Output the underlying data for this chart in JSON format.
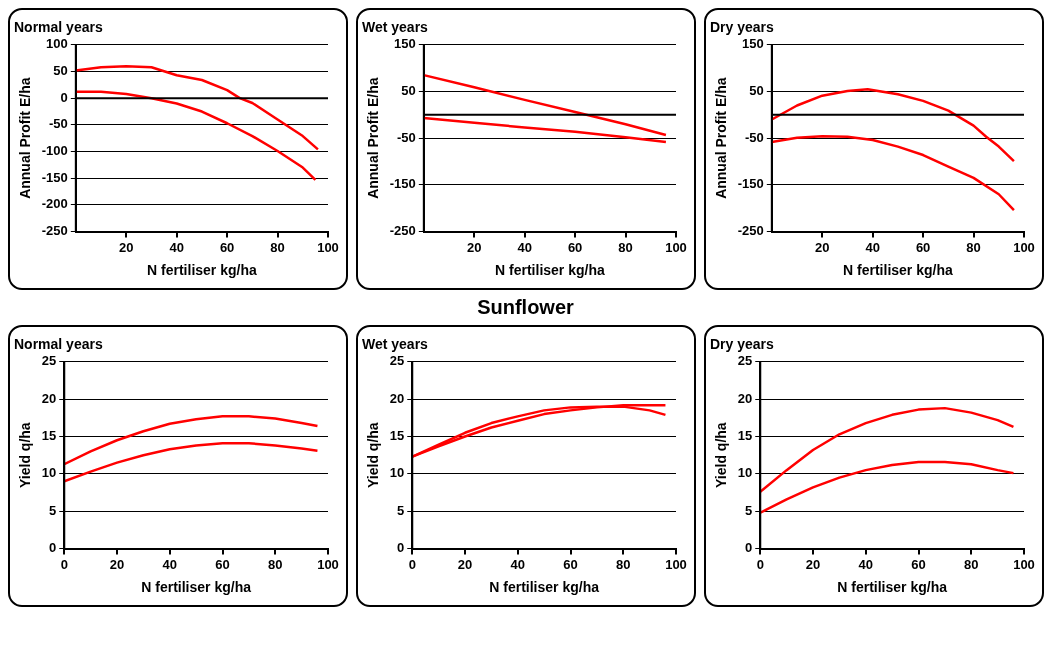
{
  "chart_data": [
    {
      "type": "line",
      "title": "Normal years",
      "xlabel": "N fertiliser kg/ha",
      "ylabel": "Annual Profit E/ha",
      "xlim": [
        0,
        100
      ],
      "xticks": [
        20,
        40,
        60,
        80,
        100
      ],
      "ylim": [
        -250,
        100
      ],
      "yticks": [
        -250,
        -200,
        -150,
        -100,
        -50,
        0,
        50,
        100
      ],
      "grid": "y",
      "marker": "none",
      "line_style": "solid",
      "legend": false,
      "series": [
        {
          "color": "#ff0000",
          "x": [
            0,
            10,
            20,
            30,
            40,
            50,
            60,
            65,
            70,
            80,
            90,
            96
          ],
          "values": [
            52,
            58,
            60,
            58,
            43,
            34,
            15,
            0,
            -9,
            -40,
            -71,
            -96
          ]
        },
        {
          "color": "#ff0000",
          "x": [
            0,
            10,
            20,
            30,
            40,
            50,
            60,
            70,
            80,
            90,
            95
          ],
          "values": [
            12,
            12,
            8,
            0,
            -10,
            -25,
            -47,
            -71,
            -99,
            -130,
            -153
          ]
        }
      ]
    },
    {
      "type": "line",
      "title": "Wet years",
      "xlabel": "N fertiliser kg/ha",
      "ylabel": "Annual Profit E/ha",
      "xlim": [
        0,
        100
      ],
      "xticks": [
        20,
        40,
        60,
        80,
        100
      ],
      "ylim": [
        -250,
        150
      ],
      "yticks": [
        -250,
        -150,
        -50,
        50,
        150
      ],
      "grid": "y",
      "marker": "none",
      "line_style": "solid",
      "legend": false,
      "series": [
        {
          "color": "#ff0000",
          "x": [
            0,
            20,
            40,
            60,
            80,
            96
          ],
          "values": [
            85,
            59,
            32,
            6,
            -20,
            -43
          ]
        },
        {
          "color": "#ff0000",
          "x": [
            0,
            20,
            40,
            60,
            80,
            96
          ],
          "values": [
            -7,
            -17,
            -27,
            -36,
            -48,
            -58
          ]
        }
      ]
    },
    {
      "type": "line",
      "title": "Dry years",
      "xlabel": "N fertiliser kg/ha",
      "ylabel": "Annual Profit E/ha",
      "xlim": [
        0,
        100
      ],
      "xticks": [
        20,
        40,
        60,
        80,
        100
      ],
      "ylim": [
        -250,
        150
      ],
      "yticks": [
        -250,
        -150,
        -50,
        50,
        150
      ],
      "grid": "y",
      "marker": "none",
      "line_style": "solid",
      "legend": false,
      "series": [
        {
          "color": "#ff0000",
          "x": [
            0,
            10,
            20,
            30,
            38,
            50,
            60,
            70,
            80,
            85,
            90,
            96
          ],
          "values": [
            -10,
            20,
            41,
            51,
            55,
            44,
            30,
            9,
            -23,
            -47,
            -68,
            -99
          ]
        },
        {
          "color": "#ff0000",
          "x": [
            0,
            10,
            20,
            30,
            40,
            50,
            60,
            70,
            80,
            90,
            96
          ],
          "values": [
            -58,
            -49,
            -46,
            -47,
            -54,
            -68,
            -86,
            -111,
            -135,
            -170,
            -204
          ]
        }
      ]
    },
    {
      "type": "line",
      "title": "Normal years",
      "annotations": [
        "Sunflower"
      ],
      "xlabel": "N fertiliser kg/ha",
      "ylabel": "Yield q/ha",
      "xlim": [
        0,
        100
      ],
      "xticks": [
        0,
        20,
        40,
        60,
        80,
        100
      ],
      "ylim": [
        0,
        25
      ],
      "yticks": [
        0,
        5,
        10,
        15,
        20,
        25
      ],
      "grid": "y",
      "marker": "none",
      "line_style": "solid",
      "legend": false,
      "series": [
        {
          "color": "#ff0000",
          "x": [
            0,
            10,
            20,
            30,
            40,
            50,
            60,
            70,
            80,
            90,
            96
          ],
          "values": [
            11.3,
            13,
            14.5,
            15.7,
            16.7,
            17.3,
            17.7,
            17.7,
            17.4,
            16.8,
            16.4
          ]
        },
        {
          "color": "#ff0000",
          "x": [
            0,
            10,
            20,
            30,
            40,
            50,
            60,
            70,
            80,
            90,
            96
          ],
          "values": [
            9,
            10.3,
            11.5,
            12.5,
            13.3,
            13.8,
            14.1,
            14.1,
            13.8,
            13.4,
            13.1
          ]
        }
      ]
    },
    {
      "type": "line",
      "title": "Wet years",
      "xlabel": "N fertiliser kg/ha",
      "ylabel": "Yield q/ha",
      "xlim": [
        0,
        100
      ],
      "xticks": [
        0,
        20,
        40,
        60,
        80,
        100
      ],
      "ylim": [
        0,
        25
      ],
      "yticks": [
        0,
        5,
        10,
        15,
        20,
        25
      ],
      "grid": "y",
      "marker": "none",
      "line_style": "solid",
      "legend": false,
      "series": [
        {
          "color": "#ff0000",
          "x": [
            0,
            10,
            20,
            30,
            40,
            50,
            60,
            70,
            80,
            90,
            96
          ],
          "values": [
            12.3,
            13.9,
            15.5,
            16.8,
            17.7,
            18.5,
            18.9,
            19,
            19,
            18.5,
            17.9
          ]
        },
        {
          "color": "#ff0000",
          "x": [
            0,
            10,
            20,
            30,
            40,
            50,
            60,
            70,
            80,
            90,
            96
          ],
          "values": [
            12.3,
            13.7,
            15,
            16.2,
            17.1,
            18,
            18.5,
            18.9,
            19.2,
            19.2,
            19.2
          ]
        }
      ]
    },
    {
      "type": "line",
      "title": "Dry years",
      "xlabel": "N fertiliser kg/ha",
      "ylabel": "Yield q/ha",
      "xlim": [
        0,
        100
      ],
      "xticks": [
        0,
        20,
        40,
        60,
        80,
        100
      ],
      "ylim": [
        0,
        25
      ],
      "yticks": [
        0,
        5,
        10,
        15,
        20,
        25
      ],
      "grid": "y",
      "marker": "none",
      "line_style": "solid",
      "legend": false,
      "series": [
        {
          "color": "#ff0000",
          "x": [
            0,
            10,
            20,
            30,
            40,
            50,
            60,
            70,
            80,
            90,
            96
          ],
          "values": [
            7.6,
            10.5,
            13.2,
            15.3,
            16.8,
            17.9,
            18.6,
            18.8,
            18.2,
            17.2,
            16.3
          ]
        },
        {
          "color": "#ff0000",
          "x": [
            0,
            10,
            20,
            30,
            40,
            50,
            60,
            70,
            80,
            90,
            96
          ],
          "values": [
            4.8,
            6.6,
            8.2,
            9.5,
            10.5,
            11.2,
            11.6,
            11.6,
            11.3,
            10.5,
            10.1
          ]
        }
      ]
    }
  ]
}
